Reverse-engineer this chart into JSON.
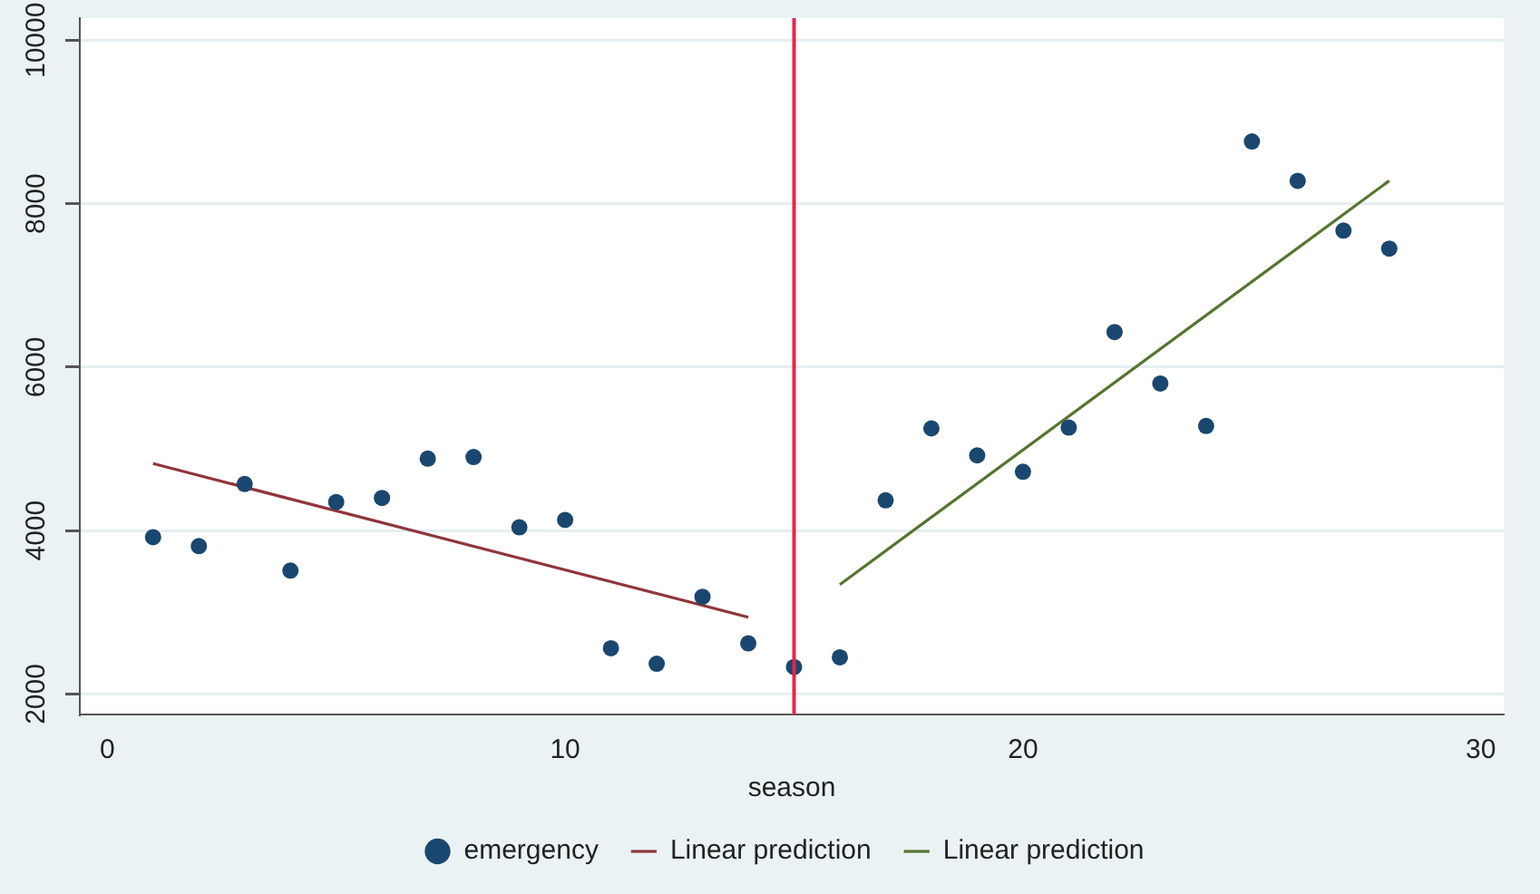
{
  "chart_data": {
    "type": "scatter",
    "xlabel": "season",
    "xlim": [
      -0.6,
      30.5
    ],
    "xticks": [
      0,
      10,
      20,
      30
    ],
    "ylim": [
      1750,
      10270
    ],
    "yticks": [
      2000,
      4000,
      6000,
      8000,
      10000
    ],
    "grid": "y",
    "legend": "bottom",
    "series": [
      {
        "name": "emergency",
        "marker": "circle",
        "color": "#1a476f",
        "x": [
          1,
          2,
          3,
          4,
          5,
          6,
          7,
          8,
          9,
          10,
          11,
          12,
          13,
          14,
          15,
          16,
          17,
          18,
          19,
          20,
          21,
          22,
          23,
          24,
          25,
          26,
          27,
          28
        ],
        "values": [
          3920,
          3810,
          4570,
          3510,
          4350,
          4400,
          4880,
          4900,
          4040,
          4130,
          2560,
          2370,
          3190,
          2620,
          2330,
          2450,
          4370,
          5250,
          4920,
          4720,
          5260,
          6430,
          5800,
          5280,
          8760,
          8280,
          7670,
          7450
        ]
      },
      {
        "name": "Linear prediction",
        "type": "line",
        "marker": "none",
        "color": "#90353b",
        "x": [
          1,
          14
        ],
        "values": [
          4820,
          2940
        ]
      },
      {
        "name": "Linear prediction",
        "type": "line",
        "marker": "none",
        "color": "#55752f",
        "x": [
          16,
          28
        ],
        "values": [
          3340,
          8280
        ]
      }
    ],
    "ref_lines": [
      {
        "axis": "x",
        "value": 15,
        "color": "#e0284a"
      }
    ]
  }
}
